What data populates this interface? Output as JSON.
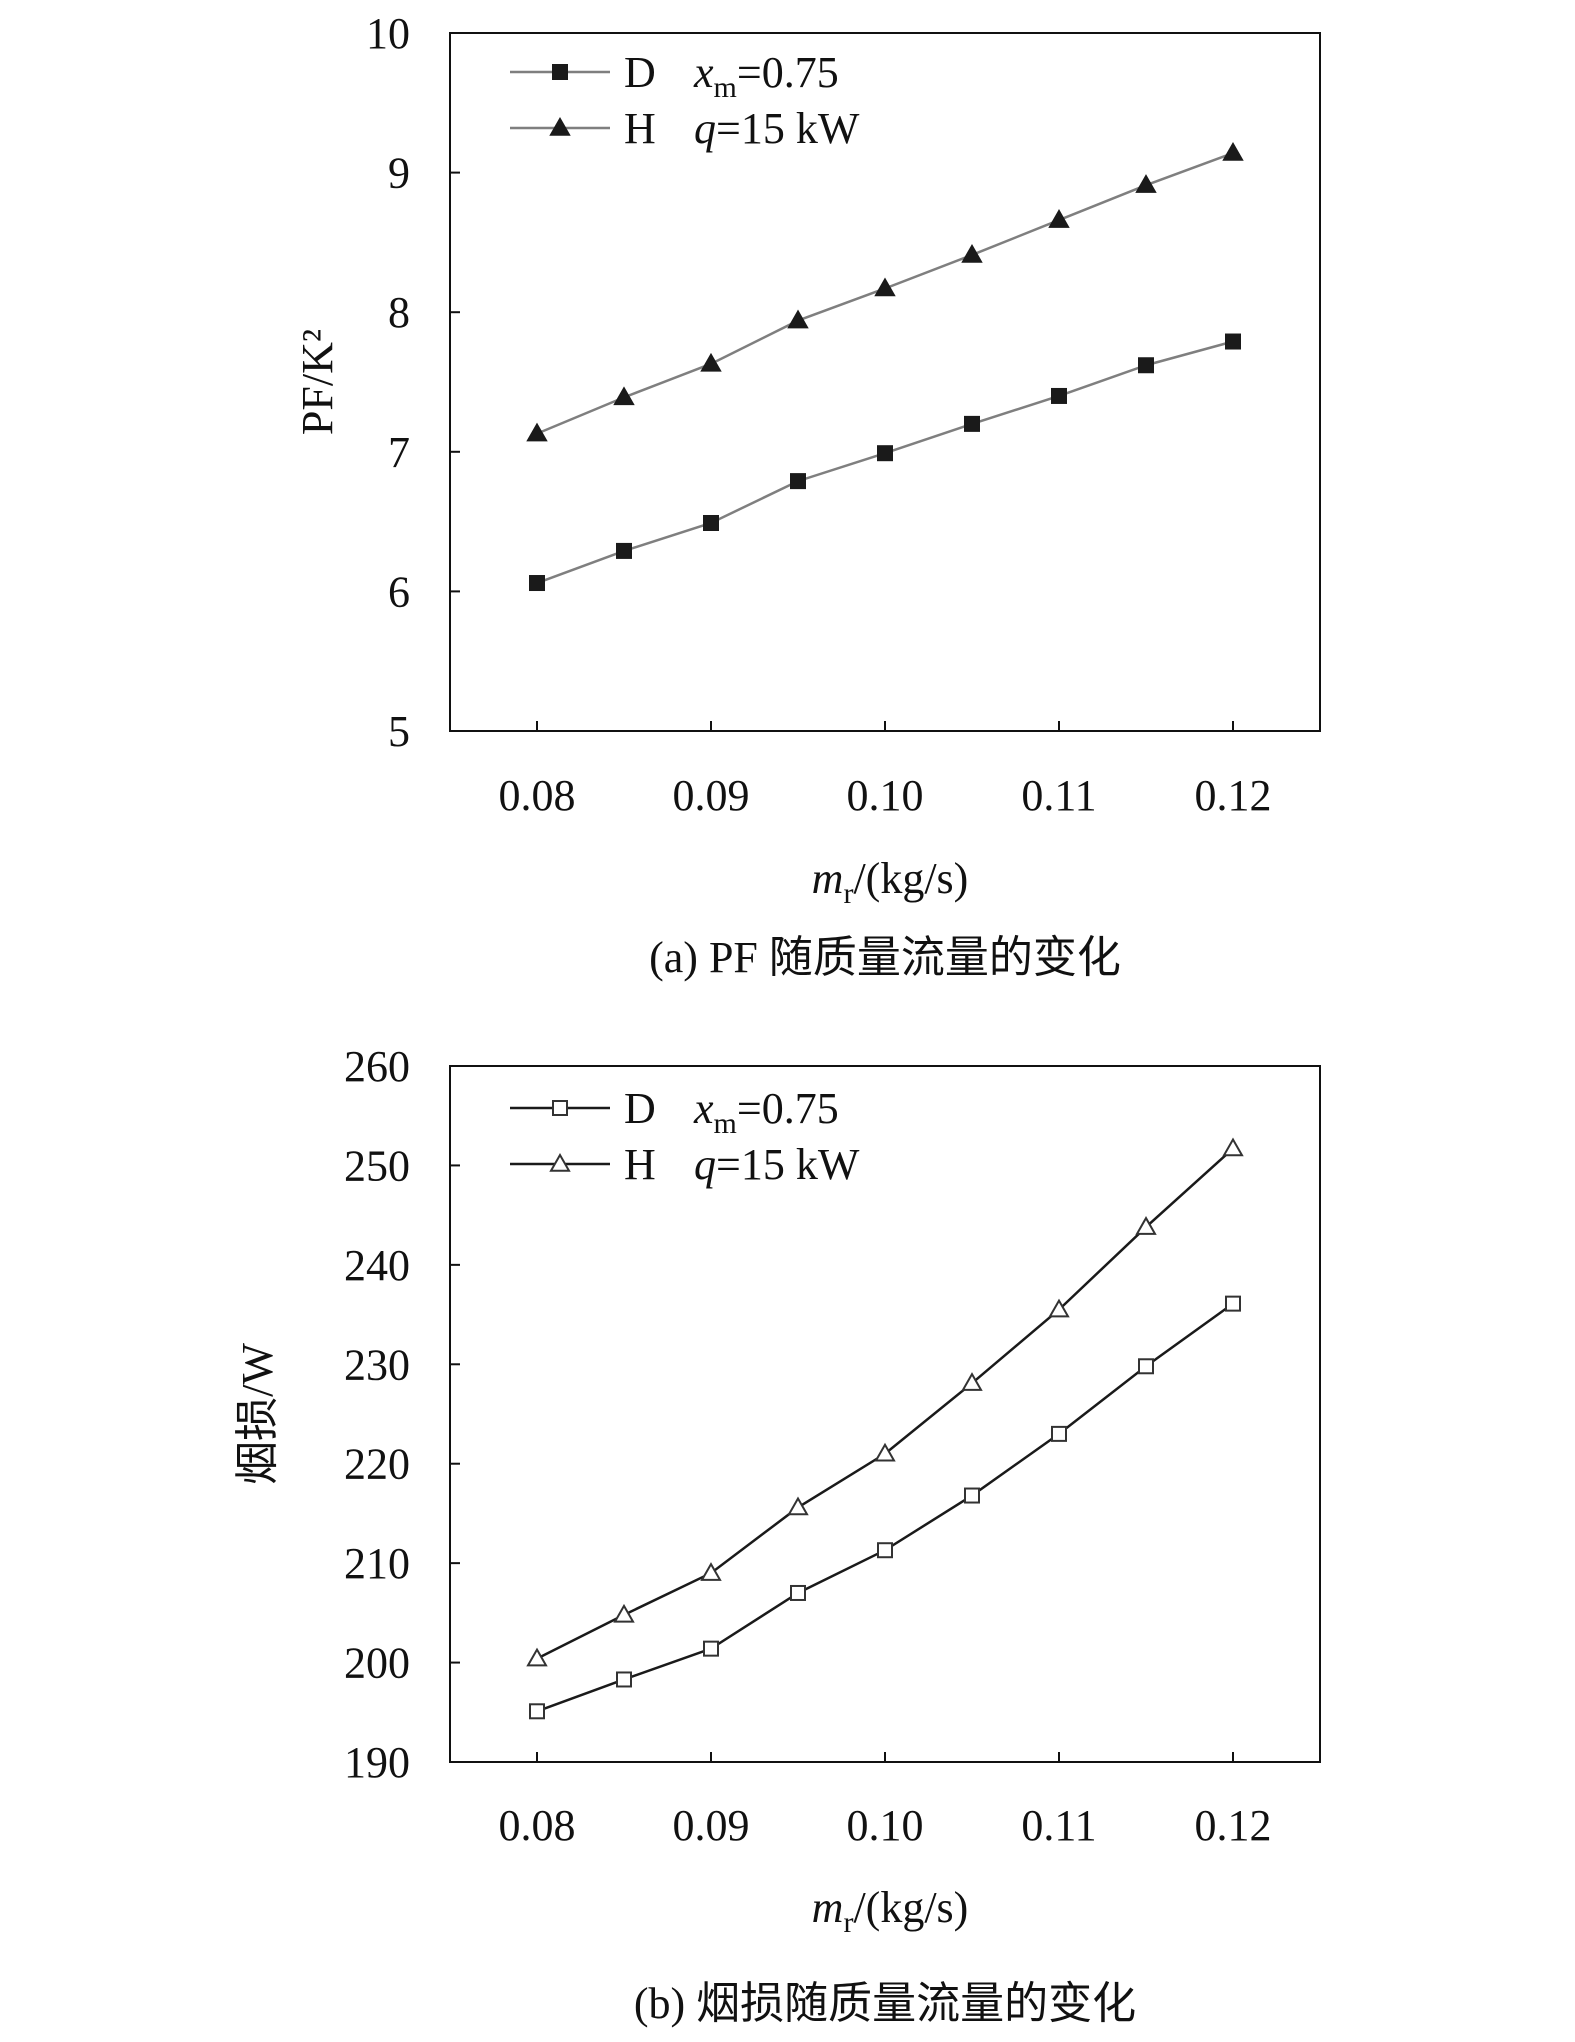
{
  "chart_data": [
    {
      "id": "a",
      "type": "line",
      "caption": "(a) PF 随质量流量的变化",
      "ylabel": "PF/K²",
      "xlabel_var": "m",
      "xlabel_sub": "r",
      "xlabel_unit": "/(kg/s)",
      "xlim": [
        0.075,
        0.125
      ],
      "ylim": [
        5,
        10
      ],
      "xticks": [
        0.08,
        0.09,
        0.1,
        0.11,
        0.12
      ],
      "xtick_labels": [
        "0.08",
        "0.09",
        "0.10",
        "0.11",
        "0.12"
      ],
      "yticks": [
        5,
        6,
        7,
        8,
        9,
        10
      ],
      "ytick_labels": [
        "5",
        "6",
        "7",
        "8",
        "9",
        "10"
      ],
      "legend_position": "top-left",
      "legend_notes": [
        {
          "var": "x",
          "sub": "m",
          "rest": "=0.75"
        },
        {
          "var": "q",
          "sub": "",
          "rest": "=15 kW"
        }
      ],
      "x": [
        0.08,
        0.085,
        0.09,
        0.095,
        0.1,
        0.105,
        0.11,
        0.115,
        0.12
      ],
      "series": [
        {
          "name": "D",
          "marker": "square-filled",
          "color": "#7f7f7f",
          "values": [
            6.06,
            6.29,
            6.49,
            6.79,
            6.99,
            7.2,
            7.4,
            7.62,
            7.79
          ]
        },
        {
          "name": "H",
          "marker": "triangle-filled",
          "color": "#7f7f7f",
          "values": [
            7.13,
            7.39,
            7.63,
            7.94,
            8.17,
            8.41,
            8.66,
            8.91,
            9.14
          ]
        }
      ]
    },
    {
      "id": "b",
      "type": "line",
      "caption": "(b) 烟损随质量流量的变化",
      "ylabel": "烟损/W",
      "xlabel_var": "m",
      "xlabel_sub": "r",
      "xlabel_unit": "/(kg/s)",
      "xlim": [
        0.075,
        0.125
      ],
      "ylim": [
        190,
        260
      ],
      "xticks": [
        0.08,
        0.09,
        0.1,
        0.11,
        0.12
      ],
      "xtick_labels": [
        "0.08",
        "0.09",
        "0.10",
        "0.11",
        "0.12"
      ],
      "yticks": [
        190,
        200,
        210,
        220,
        230,
        240,
        250,
        260
      ],
      "ytick_labels": [
        "190",
        "200",
        "210",
        "220",
        "230",
        "240",
        "250",
        "260"
      ],
      "legend_position": "top-left",
      "legend_notes": [
        {
          "var": "x",
          "sub": "m",
          "rest": "=0.75"
        },
        {
          "var": "q",
          "sub": "",
          "rest": "=15 kW"
        }
      ],
      "x": [
        0.08,
        0.085,
        0.09,
        0.095,
        0.1,
        0.105,
        0.11,
        0.115,
        0.12
      ],
      "series": [
        {
          "name": "D",
          "marker": "square-open",
          "color": "#1a1a1a",
          "values": [
            195.1,
            198.3,
            201.4,
            207.0,
            211.3,
            216.8,
            223.0,
            229.8,
            236.1
          ]
        },
        {
          "name": "H",
          "marker": "triangle-open",
          "color": "#1a1a1a",
          "values": [
            200.4,
            204.8,
            209.0,
            215.6,
            221.0,
            228.1,
            235.5,
            243.8,
            251.7
          ]
        }
      ]
    }
  ]
}
